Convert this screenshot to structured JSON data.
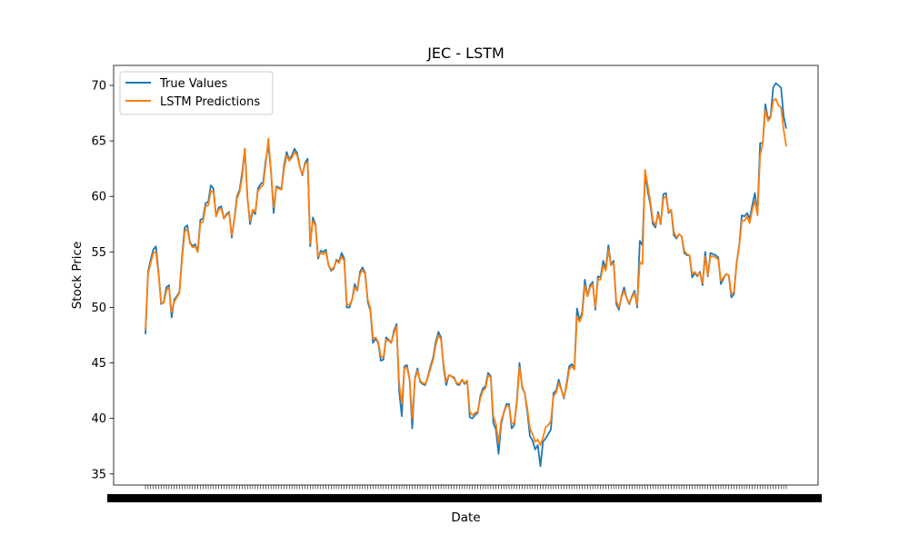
{
  "chart_data": {
    "type": "line",
    "title": "JEC - LSTM",
    "xlabel": "Date",
    "ylabel": "Stock Price",
    "ylim": [
      34.0,
      71.8
    ],
    "yticks": [
      35,
      40,
      45,
      50,
      55,
      60,
      65,
      70
    ],
    "grid": false,
    "legend_position": "top-left",
    "x_tick_labels_note": "dense overlapping date labels, illegible",
    "series": [
      {
        "name": "True Values",
        "color": "#1f77b4",
        "values": [
          47.6,
          53.2,
          54.3,
          55.2,
          55.5,
          53.2,
          50.3,
          50.5,
          51.8,
          52.0,
          49.1,
          50.7,
          51.0,
          51.4,
          54.6,
          57.2,
          57.4,
          55.9,
          55.5,
          55.7,
          55.0,
          57.9,
          58.0,
          59.4,
          59.5,
          61.0,
          60.7,
          58.2,
          59.0,
          59.1,
          58.0,
          58.4,
          58.6,
          56.3,
          58.0,
          60.0,
          60.6,
          62.2,
          64.3,
          59.9,
          57.5,
          58.7,
          58.4,
          60.7,
          61.1,
          61.3,
          63.3,
          64.6,
          62.3,
          58.5,
          60.9,
          60.8,
          60.7,
          62.8,
          64.0,
          63.3,
          63.7,
          64.3,
          63.9,
          62.7,
          61.9,
          63.0,
          63.4,
          55.5,
          58.1,
          57.5,
          54.4,
          55.1,
          55.0,
          55.2,
          53.8,
          53.3,
          53.5,
          54.3,
          54.1,
          54.9,
          54.4,
          50.0,
          50.0,
          50.7,
          52.1,
          51.5,
          53.2,
          53.6,
          53.1,
          50.5,
          49.7,
          46.8,
          47.2,
          46.8,
          45.2,
          45.3,
          47.3,
          47.1,
          46.8,
          47.9,
          48.5,
          42.5,
          40.2,
          44.7,
          44.8,
          43.5,
          39.1,
          43.6,
          44.5,
          43.3,
          43.1,
          43.0,
          43.8,
          44.7,
          45.5,
          46.9,
          47.8,
          47.3,
          44.6,
          43.0,
          43.9,
          43.8,
          43.7,
          43.1,
          43.0,
          43.5,
          43.1,
          43.4,
          40.1,
          40.0,
          40.3,
          40.5,
          42.0,
          42.7,
          42.9,
          44.1,
          43.8,
          39.6,
          39.0,
          36.8,
          39.5,
          40.5,
          41.3,
          41.3,
          39.1,
          39.4,
          41.6,
          45.0,
          42.8,
          42.3,
          40.6,
          38.4,
          38.0,
          37.2,
          37.6,
          35.7,
          37.9,
          38.2,
          38.6,
          39.0,
          42.3,
          42.5,
          43.5,
          42.6,
          41.8,
          43.1,
          44.7,
          44.9,
          44.5,
          49.9,
          48.8,
          49.6,
          52.5,
          51.0,
          52.0,
          52.3,
          49.8,
          52.8,
          52.7,
          54.2,
          53.5,
          55.6,
          53.8,
          54.2,
          50.3,
          49.8,
          51.0,
          51.8,
          50.8,
          50.3,
          51.0,
          51.5,
          50.0,
          56.0,
          55.6,
          62.0,
          60.5,
          59.3,
          57.5,
          57.2,
          58.6,
          57.5,
          60.2,
          60.3,
          58.5,
          58.8,
          56.5,
          56.2,
          56.6,
          56.4,
          54.9,
          54.7,
          54.7,
          52.7,
          53.1,
          52.8,
          53.2,
          52.0,
          55.0,
          52.8,
          54.9,
          54.8,
          54.7,
          54.5,
          52.1,
          52.6,
          53.0,
          52.9,
          50.9,
          51.2,
          54.0,
          55.6,
          58.3,
          58.2,
          58.5,
          58.0,
          59.2,
          60.3,
          58.5,
          64.8,
          64.8,
          68.3,
          67.0,
          67.2,
          69.8,
          70.2,
          70.0,
          69.8,
          67.2,
          66.1
        ]
      },
      {
        "name": "LSTM Predictions",
        "color": "#ff7f0e",
        "values": [
          48.0,
          53.0,
          54.0,
          54.9,
          55.0,
          53.0,
          50.4,
          50.4,
          51.5,
          51.8,
          49.6,
          50.5,
          50.9,
          51.3,
          54.3,
          56.8,
          57.1,
          55.8,
          55.4,
          55.5,
          55.0,
          57.6,
          57.7,
          59.1,
          59.2,
          60.5,
          60.4,
          58.2,
          58.8,
          58.9,
          58.0,
          58.3,
          58.5,
          56.5,
          57.9,
          59.8,
          60.4,
          61.8,
          64.3,
          59.8,
          57.8,
          58.8,
          58.6,
          60.5,
          60.8,
          61.0,
          63.0,
          65.2,
          62.3,
          59.0,
          60.8,
          60.7,
          60.6,
          62.5,
          63.7,
          63.2,
          63.5,
          64.0,
          63.7,
          62.6,
          62.0,
          62.9,
          63.1,
          55.8,
          57.8,
          57.4,
          54.6,
          54.9,
          54.8,
          55.0,
          53.8,
          53.4,
          53.6,
          54.2,
          54.0,
          54.6,
          54.2,
          50.3,
          50.2,
          50.7,
          51.8,
          51.5,
          53.0,
          53.4,
          53.0,
          50.7,
          49.9,
          47.2,
          47.3,
          46.9,
          45.6,
          45.5,
          47.1,
          47.0,
          46.8,
          47.7,
          48.3,
          43.2,
          41.3,
          44.5,
          44.6,
          43.5,
          40.0,
          43.5,
          44.3,
          43.4,
          43.2,
          43.1,
          43.7,
          44.5,
          45.3,
          46.6,
          47.5,
          47.1,
          44.8,
          43.3,
          43.9,
          43.8,
          43.6,
          43.2,
          43.1,
          43.5,
          43.2,
          43.4,
          40.6,
          40.3,
          40.5,
          40.6,
          41.8,
          42.5,
          42.7,
          43.9,
          43.7,
          40.2,
          39.5,
          37.8,
          39.8,
          40.5,
          41.1,
          41.1,
          39.5,
          39.6,
          41.4,
          44.6,
          42.9,
          42.3,
          40.9,
          39.1,
          38.6,
          37.9,
          38.1,
          37.6,
          38.3,
          39.2,
          39.4,
          39.8,
          42.0,
          42.3,
          43.2,
          42.6,
          41.9,
          42.9,
          44.4,
          44.7,
          44.4,
          49.2,
          48.7,
          49.3,
          52.0,
          51.0,
          51.8,
          52.1,
          50.0,
          52.5,
          52.5,
          53.8,
          53.3,
          55.2,
          53.8,
          54.0,
          50.6,
          50.0,
          50.9,
          51.5,
          50.8,
          50.4,
          50.9,
          51.3,
          50.2,
          54.1,
          53.9,
          62.4,
          61.0,
          59.6,
          57.8,
          57.4,
          58.4,
          57.6,
          59.8,
          60.0,
          58.6,
          58.8,
          56.8,
          56.3,
          56.6,
          56.4,
          55.1,
          54.8,
          54.7,
          53.0,
          53.2,
          52.9,
          53.1,
          52.2,
          54.6,
          52.9,
          54.6,
          54.6,
          54.5,
          54.3,
          52.4,
          52.7,
          53.0,
          52.9,
          51.2,
          51.4,
          53.9,
          55.5,
          57.8,
          57.8,
          58.2,
          57.6,
          58.8,
          59.6,
          58.3,
          63.7,
          64.8,
          67.8,
          66.8,
          67.1,
          68.6,
          68.8,
          68.2,
          68.0,
          66.0,
          64.5
        ]
      }
    ]
  }
}
